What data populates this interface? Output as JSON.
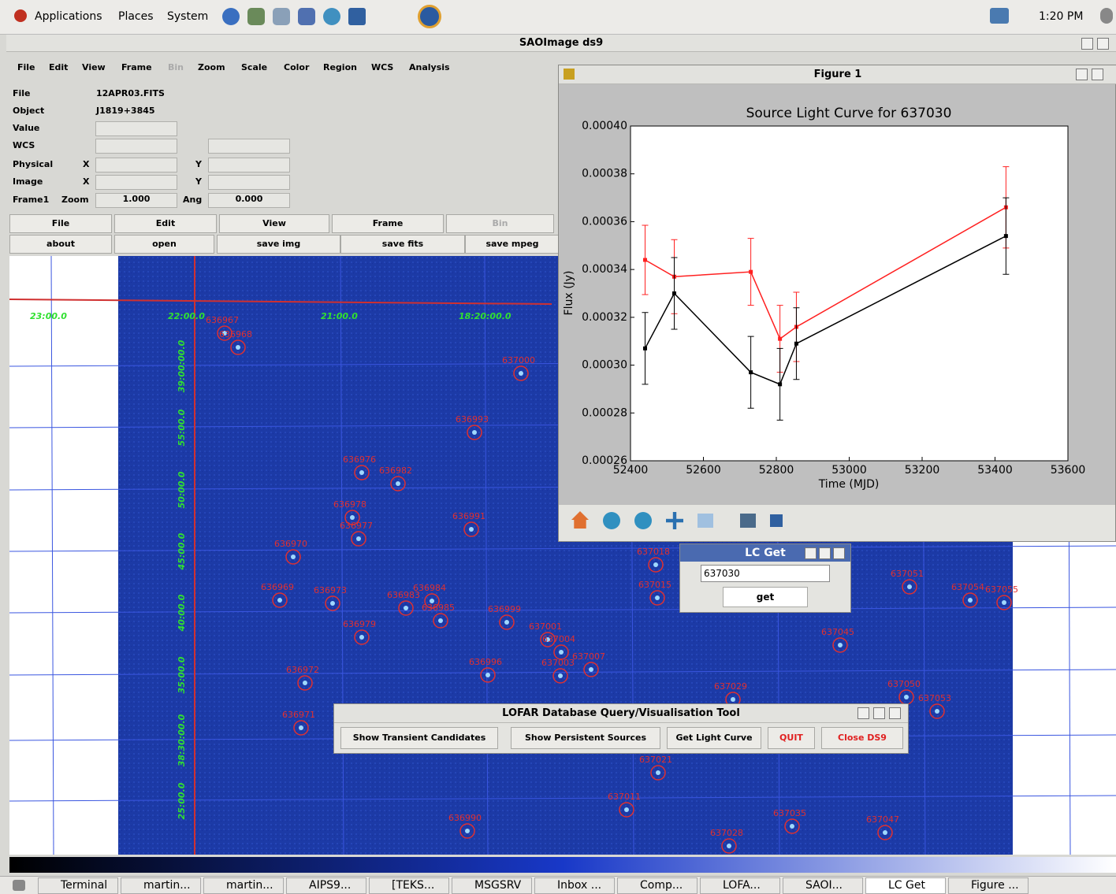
{
  "top_panel": {
    "menus": [
      "Applications",
      "Places",
      "System"
    ],
    "clock": "1:20 PM"
  },
  "ds9": {
    "title": "SAOImage ds9",
    "menu": [
      "File",
      "Edit",
      "View",
      "Frame",
      "Bin",
      "Zoom",
      "Scale",
      "Color",
      "Region",
      "WCS",
      "Analysis"
    ],
    "info": {
      "file_label": "File",
      "file": "12APR03.FITS",
      "object_label": "Object",
      "object": "J1819+3845",
      "value_label": "Value",
      "wcs_label": "WCS",
      "physical_label": "Physical",
      "image_label": "Image",
      "x_label": "X",
      "y_label": "Y",
      "frame_label": "Frame1",
      "zoom_label": "Zoom",
      "zoom": "1.000",
      "ang_label": "Ang",
      "ang": "0.000"
    },
    "button_bar": [
      "File",
      "Edit",
      "View",
      "Frame",
      "Bin"
    ],
    "button_row": [
      "about",
      "open",
      "save img",
      "save fits",
      "save mpeg"
    ],
    "ra_labels": [
      "23:00.0",
      "22:00.0",
      "21:00.0",
      "18:20:00.0"
    ],
    "dec_labels": [
      "39:00:00.0",
      "55:00.0",
      "50:00.0",
      "45:00.0",
      "40:00.0",
      "35:00.0",
      "38:30:00.0",
      "25:00.0"
    ],
    "sources": [
      "636967",
      "636968",
      "637000",
      "636993",
      "636976",
      "636982",
      "636978",
      "636977",
      "636991",
      "636970",
      "636969",
      "636973",
      "636983",
      "636984",
      "636985",
      "636999",
      "636979",
      "637001",
      "637004",
      "637007",
      "637003",
      "636996",
      "636972",
      "636971",
      "637029",
      "637051",
      "637054",
      "637055",
      "637045",
      "637050",
      "637053",
      "637011",
      "636990",
      "637035",
      "637028",
      "637047",
      "637021",
      "637018",
      "637015"
    ]
  },
  "figure": {
    "title": "Figure 1"
  },
  "chart_data": {
    "type": "line",
    "title": "Source Light Curve for 637030",
    "x_label": "Time (MJD)",
    "y_label": "Flux (Jy)",
    "x": [
      52440,
      52520,
      52730,
      52810,
      52855,
      53430
    ],
    "series": [
      {
        "color": "#ff2020",
        "values": [
          0.000344,
          0.000337,
          0.000339,
          0.000311,
          0.000316,
          0.000366
        ],
        "errors": [
          1.45e-05,
          1.55e-05,
          1.4e-05,
          1.4e-05,
          1.45e-05,
          1.7e-05
        ]
      },
      {
        "color": "#000000",
        "values": [
          0.000307,
          0.00033,
          0.000297,
          0.000292,
          0.000309,
          0.000354
        ],
        "errors": [
          1.5e-05,
          1.5e-05,
          1.5e-05,
          1.5e-05,
          1.5e-05,
          1.6e-05
        ]
      }
    ],
    "xlim": [
      52400,
      53600
    ],
    "xticks": [
      52400,
      52600,
      52800,
      53000,
      53200,
      53400,
      53600
    ],
    "ylim": [
      0.00026,
      0.0004
    ],
    "yticks": [
      0.00026,
      0.00028,
      {
        "value": 0.0003,
        "label": "0.00030"
      },
      0.00032,
      0.00034,
      0.00036,
      0.00038,
      {
        "value": 0.0004,
        "label": "0.00040"
      }
    ]
  },
  "lc_get": {
    "title": "LC Get",
    "input": "637030",
    "button": "get"
  },
  "lofar": {
    "title": "LOFAR Database Query/Visualisation Tool",
    "buttons": [
      "Show Transient Candidates",
      "Show Persistent Sources",
      "Get Light Curve",
      "QUIT",
      "Close DS9"
    ]
  },
  "taskbar": [
    "Terminal",
    "martin...",
    "martin...",
    "AIPS9...",
    "[TEKS...",
    "MSGSRV",
    "Inbox ...",
    "Comp...",
    "LOFA...",
    "SAOI...",
    "LC Get",
    "Figure ..."
  ]
}
